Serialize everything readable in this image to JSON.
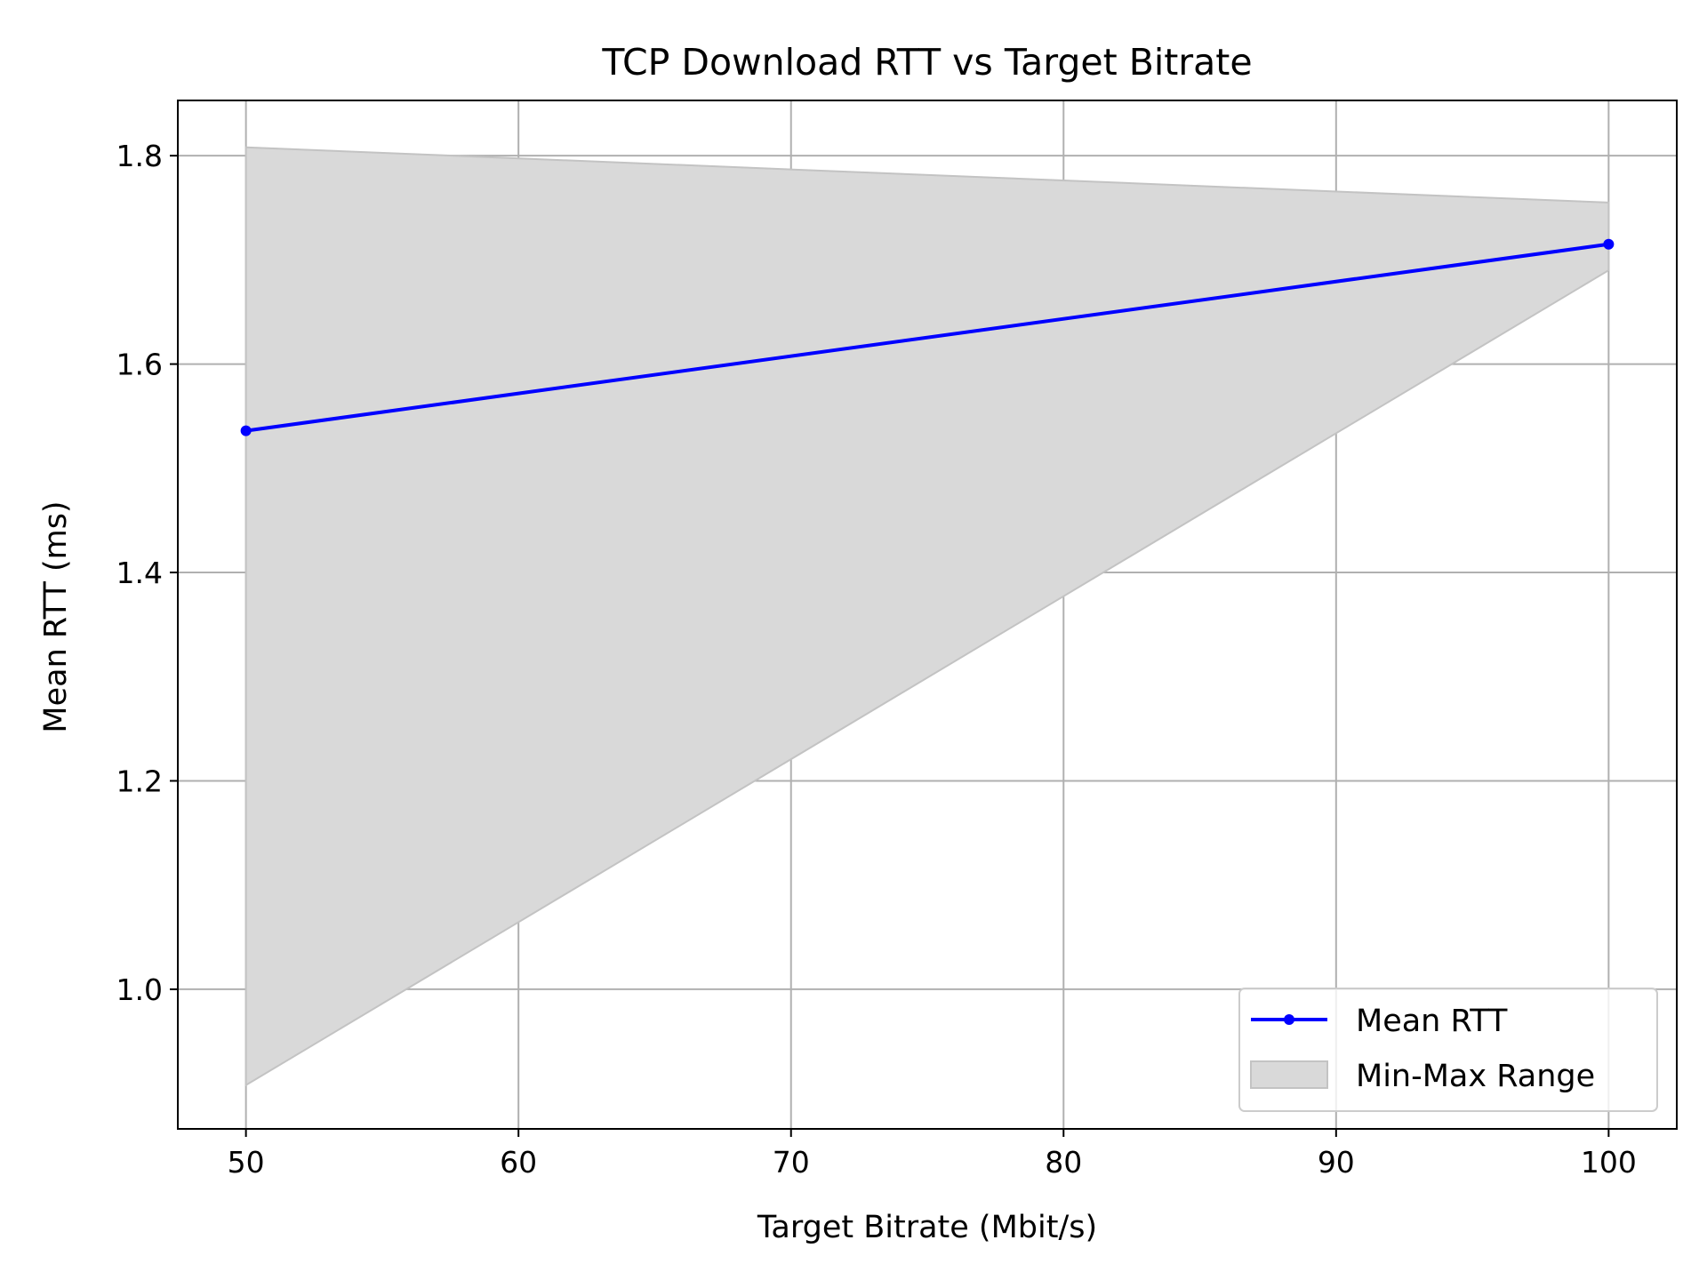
{
  "chart_data": {
    "type": "line",
    "title": "TCP Download RTT vs Target Bitrate",
    "xlabel": "Target Bitrate (Mbit/s)",
    "ylabel": "Mean RTT (ms)",
    "x": [
      50,
      100
    ],
    "series": [
      {
        "name": "Mean RTT",
        "values": [
          1.536,
          1.715
        ],
        "color": "#0000ff",
        "marker": "circle"
      }
    ],
    "band": {
      "name": "Min-Max Range",
      "min": [
        0.908,
        1.69
      ],
      "max": [
        1.808,
        1.755
      ],
      "color": "#d9d9d9"
    },
    "xlim": [
      47.5,
      102.5
    ],
    "ylim": [
      0.866,
      1.853
    ],
    "xticks": [
      50,
      60,
      70,
      80,
      90,
      100
    ],
    "yticks": [
      1.0,
      1.2,
      1.4,
      1.6,
      1.8
    ],
    "xtick_labels": [
      "50",
      "60",
      "70",
      "80",
      "90",
      "100"
    ],
    "ytick_labels": [
      "1.0",
      "1.2",
      "1.4",
      "1.6",
      "1.8"
    ],
    "grid": true,
    "legend_position": "lower-right"
  }
}
